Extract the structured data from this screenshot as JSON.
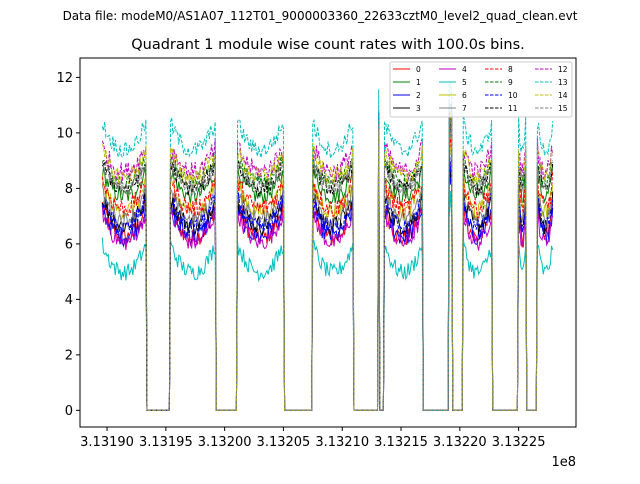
{
  "chart_data": {
    "type": "line",
    "suptitle": "Data file: modeM0/AS1A07_112T01_9000003360_22633cztM0_level2_quad_clean.evt",
    "title": "Quadrant 1 module wise count rates with 100.0s bins.",
    "xlabel": "",
    "ylabel": "",
    "x_offset_label": "1e8",
    "xlim": [
      313187700,
      313229880
    ],
    "ylim": [
      -0.6,
      12.7
    ],
    "xticks": [
      313190000,
      313195000,
      313200000,
      313205000,
      313210000,
      313215000,
      313220000,
      313225000
    ],
    "xtick_labels": [
      "3.13190",
      "3.13195",
      "3.13200",
      "3.13205",
      "3.13210",
      "3.13215",
      "3.13220",
      "3.13225"
    ],
    "yticks": [
      0,
      2,
      4,
      6,
      8,
      10,
      12
    ],
    "ytick_labels": [
      "0",
      "2",
      "4",
      "6",
      "8",
      "10",
      "12"
    ],
    "grid": false,
    "legend_placement": "top-right",
    "legend_columns": 4,
    "time_grid": {
      "start": 313189600,
      "stop": 313227900,
      "step": 100
    },
    "on_intervals": [
      [
        313189600,
        313193300
      ],
      [
        313195400,
        313199200
      ],
      [
        313201100,
        313205000
      ],
      [
        313207500,
        313210900
      ],
      [
        313213100,
        313213100
      ],
      [
        313213600,
        313216800
      ],
      [
        313219100,
        313219300
      ],
      [
        313220300,
        313222700
      ],
      [
        313225000,
        313225600
      ],
      [
        313226600,
        313227900
      ]
    ],
    "series": [
      {
        "name": "0",
        "color": "#ff0000",
        "dash": false,
        "mean_rate": 6.6,
        "edge_rise": 1.2,
        "noise": 0.35
      },
      {
        "name": "1",
        "color": "#008000",
        "dash": false,
        "mean_rate": 8.0,
        "edge_rise": 0.9,
        "noise": 0.3
      },
      {
        "name": "2",
        "color": "#0000ff",
        "dash": false,
        "mean_rate": 6.6,
        "edge_rise": 1.0,
        "noise": 0.35
      },
      {
        "name": "3",
        "color": "#000000",
        "dash": false,
        "mean_rate": 7.0,
        "edge_rise": 1.0,
        "noise": 0.35
      },
      {
        "name": "4",
        "color": "#bf00bf",
        "dash": false,
        "mean_rate": 6.4,
        "edge_rise": 1.1,
        "noise": 0.3
      },
      {
        "name": "5",
        "color": "#00bfbf",
        "dash": false,
        "mean_rate": 5.3,
        "edge_rise": 1.0,
        "noise": 0.3
      },
      {
        "name": "6",
        "color": "#bfbf00",
        "dash": false,
        "mean_rate": 7.5,
        "edge_rise": 1.0,
        "noise": 0.35
      },
      {
        "name": "7",
        "color": "#808080",
        "dash": false,
        "mean_rate": 7.2,
        "edge_rise": 1.0,
        "noise": 0.3
      },
      {
        "name": "8",
        "color": "#ff0000",
        "dash": true,
        "mean_rate": 7.6,
        "edge_rise": 1.0,
        "noise": 0.35
      },
      {
        "name": "9",
        "color": "#008000",
        "dash": true,
        "mean_rate": 8.5,
        "edge_rise": 0.9,
        "noise": 0.3
      },
      {
        "name": "10",
        "color": "#0000ff",
        "dash": true,
        "mean_rate": 6.9,
        "edge_rise": 1.1,
        "noise": 0.35
      },
      {
        "name": "11",
        "color": "#000000",
        "dash": true,
        "mean_rate": 8.3,
        "edge_rise": 0.9,
        "noise": 0.3
      },
      {
        "name": "12",
        "color": "#bf00bf",
        "dash": true,
        "mean_rate": 8.9,
        "edge_rise": 0.9,
        "noise": 0.35
      },
      {
        "name": "13",
        "color": "#00bfbf",
        "dash": true,
        "mean_rate": 9.7,
        "edge_rise": 1.0,
        "noise": 0.3
      },
      {
        "name": "14",
        "color": "#bfbf00",
        "dash": true,
        "mean_rate": 8.7,
        "edge_rise": 0.9,
        "noise": 0.35
      },
      {
        "name": "15",
        "color": "#808080",
        "dash": true,
        "mean_rate": 8.3,
        "edge_rise": 0.9,
        "noise": 0.3
      }
    ]
  }
}
